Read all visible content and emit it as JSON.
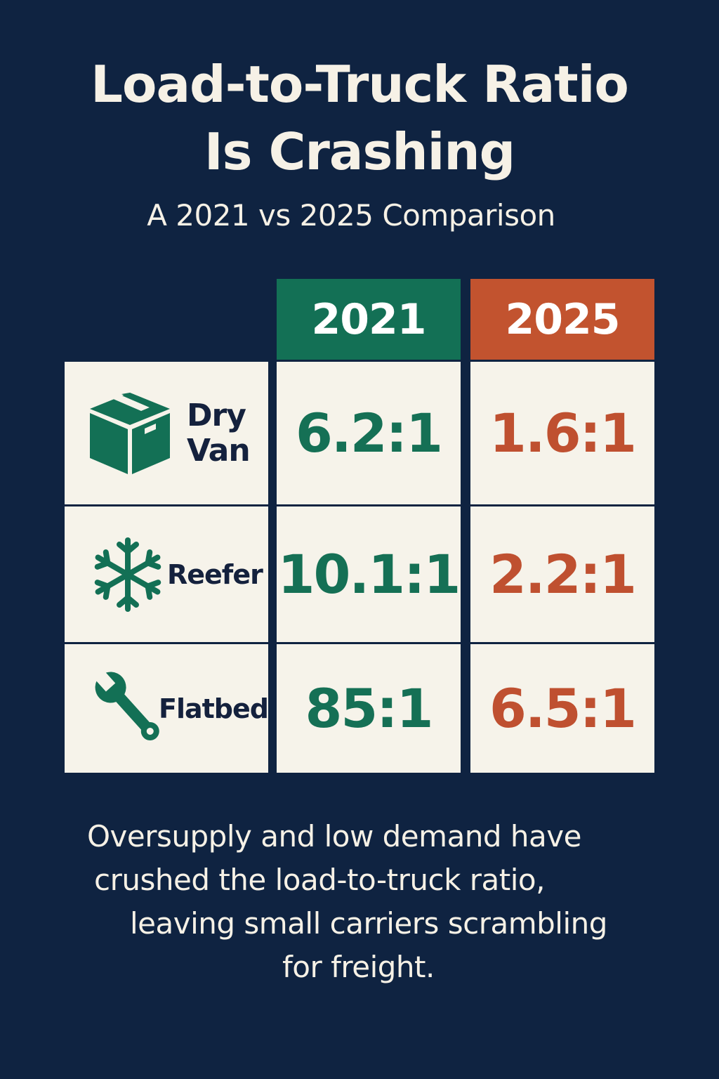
{
  "title": {
    "line1": "Load-to-Truck Ratio",
    "line2": "Is Crashing"
  },
  "subtitle": "A 2021 vs 2025 Comparison",
  "chart_data": {
    "type": "table",
    "title": "Load-to-Truck Ratio Is Crashing",
    "subtitle": "A 2021 vs 2025 Comparison",
    "columns": [
      "2021",
      "2025"
    ],
    "column_colors": [
      "#137055",
      "#c2532f"
    ],
    "rows": [
      {
        "category": "Dry Van",
        "label_lines": [
          "Dry",
          "Van"
        ],
        "icon": "box-icon",
        "values": [
          "6.2:1",
          "1.6:1"
        ]
      },
      {
        "category": "Reefer",
        "label_lines": [
          "Reefer"
        ],
        "icon": "snowflake-icon",
        "values": [
          "10.1:1",
          "2.2:1"
        ]
      },
      {
        "category": "Flatbed",
        "label_lines": [
          "Flatbed"
        ],
        "icon": "wrench-icon",
        "values": [
          "85:1",
          "6.5:1"
        ]
      }
    ]
  },
  "caption": {
    "lines": [
      "Oversupply and low demand have",
      "crushed the load-to-truck ratio,",
      "leaving small carriers scrambling",
      "for freight."
    ]
  },
  "colors": {
    "background": "#0f2341",
    "green": "#137055",
    "orange": "#c2532f",
    "cell": "#f6f3ea",
    "text_light": "#f6f1e6",
    "text_dark": "#14213d"
  }
}
